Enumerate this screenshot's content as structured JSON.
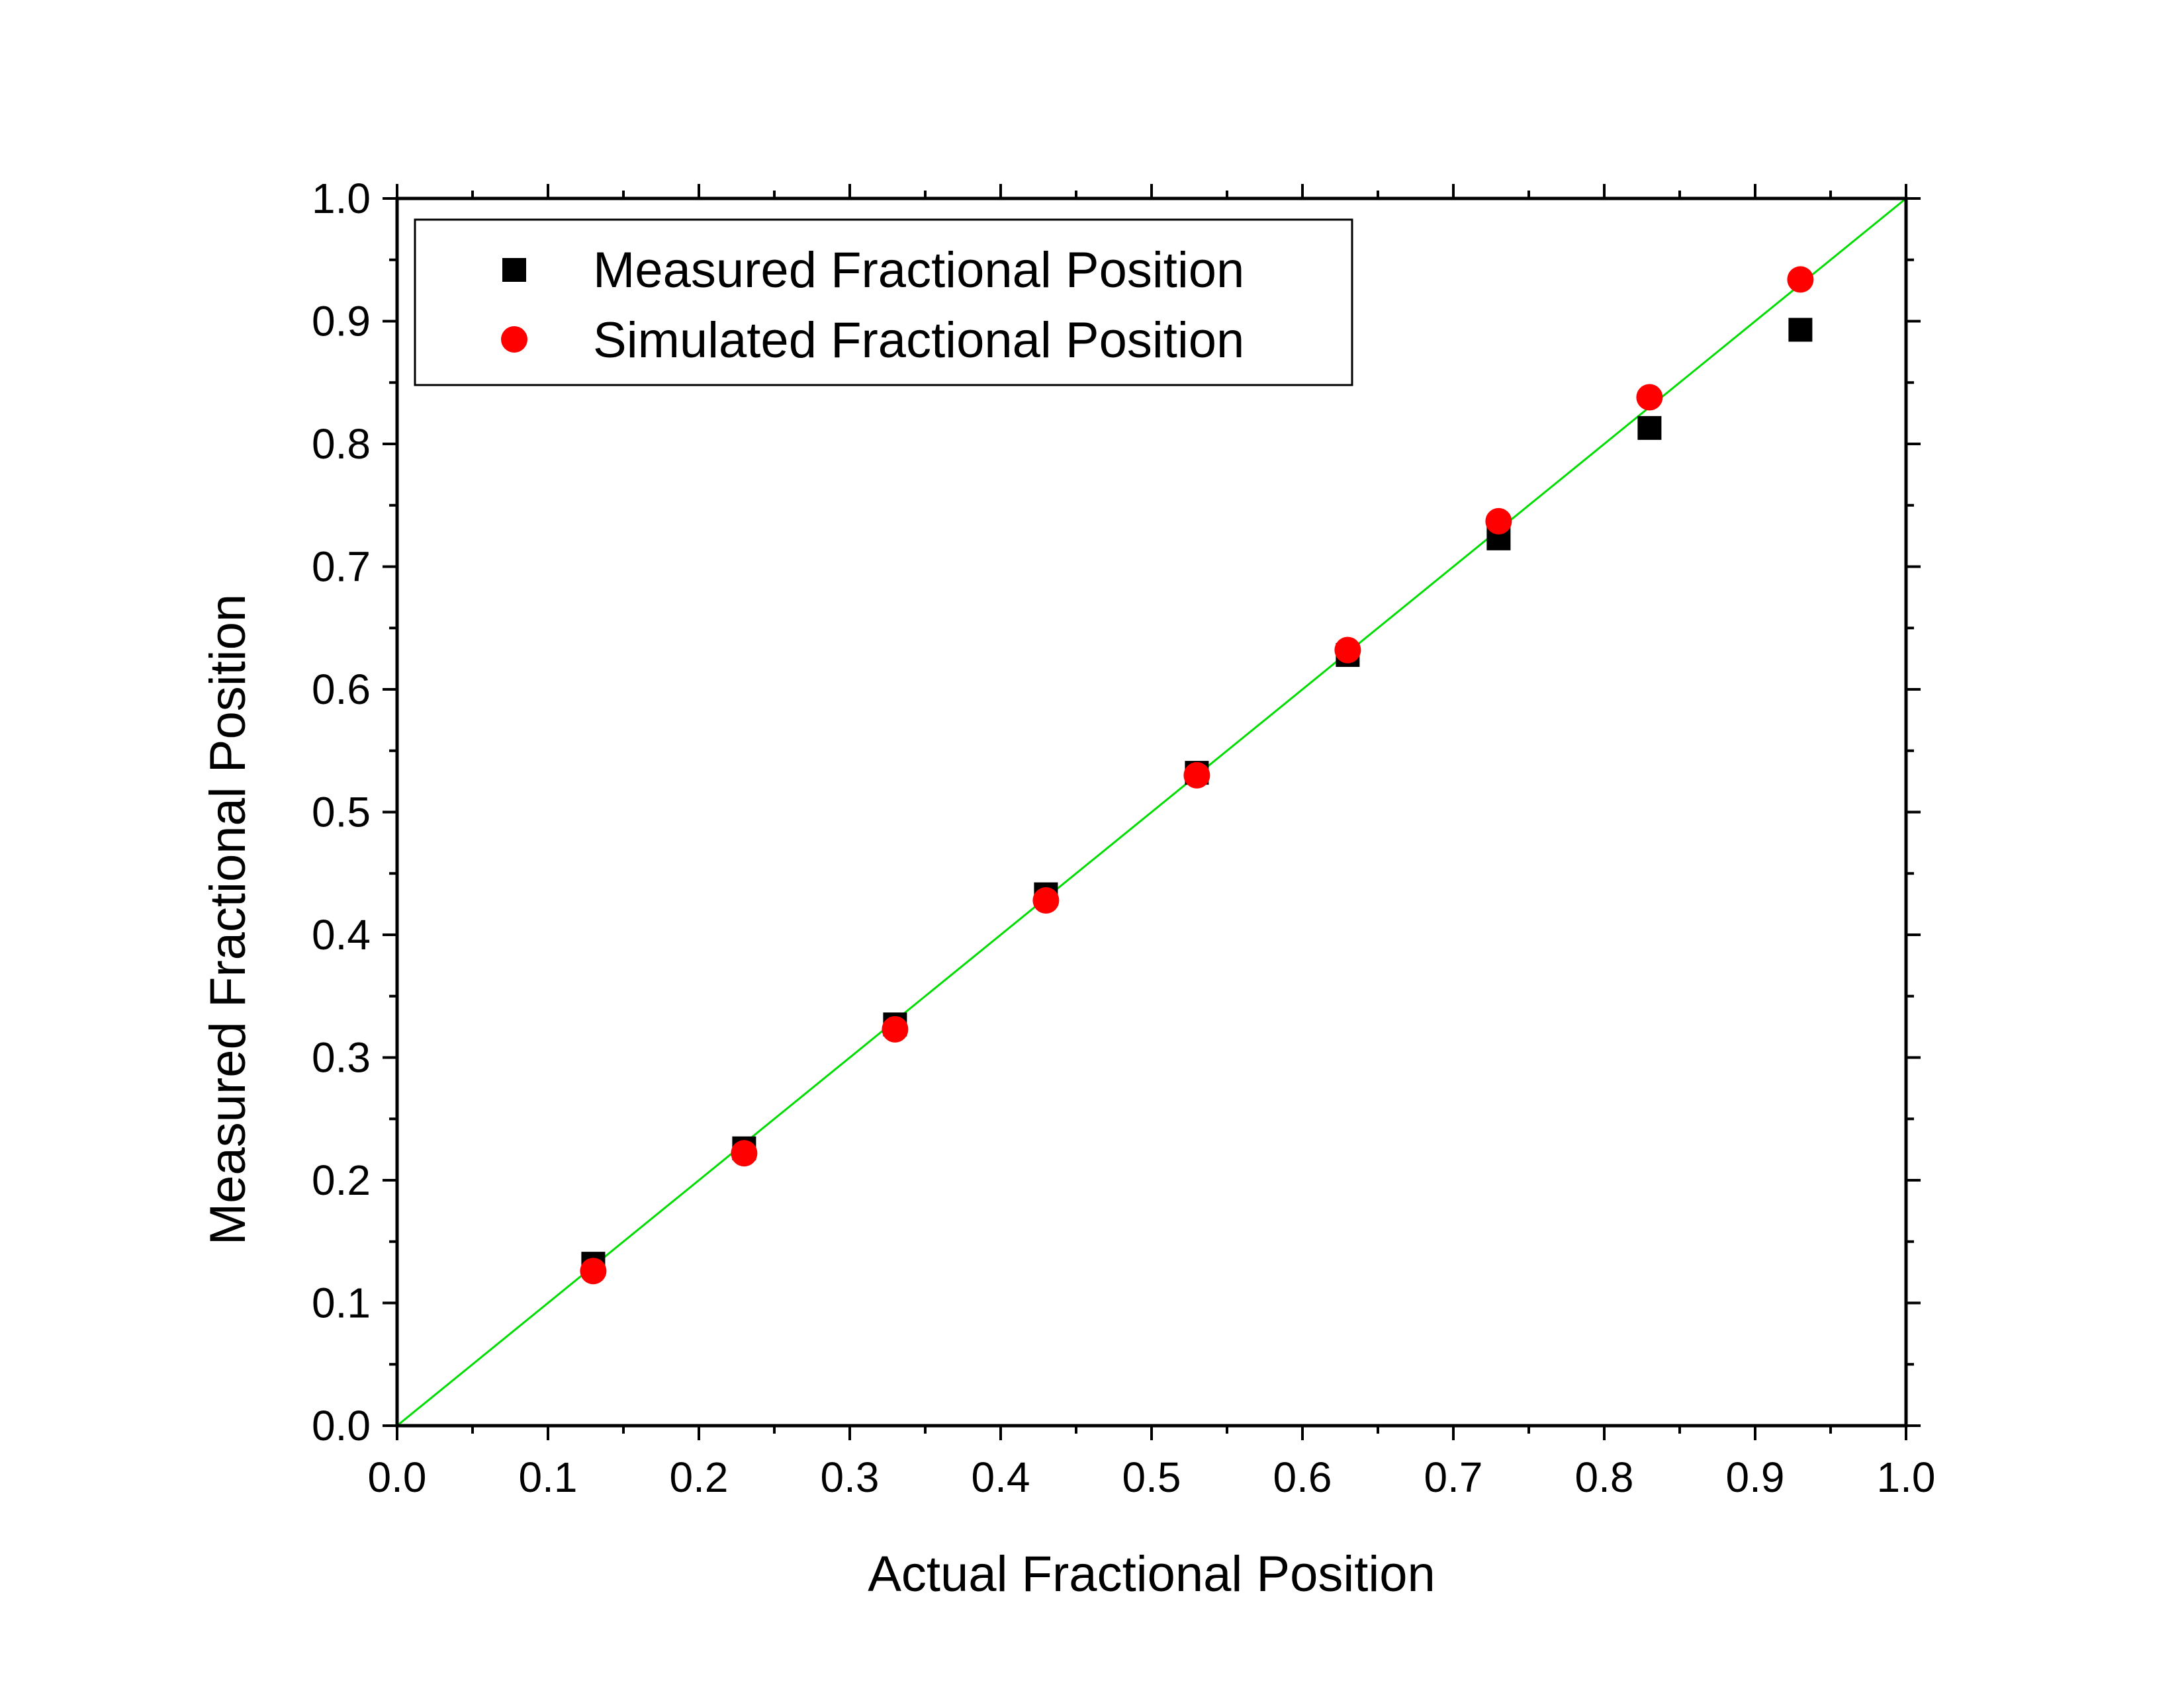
{
  "chart_data": {
    "type": "scatter",
    "title": "",
    "xlabel": "Actual Fractional Position",
    "ylabel": "Measured Fractional Position",
    "xlim": [
      0.0,
      1.0
    ],
    "ylim": [
      0.0,
      1.0
    ],
    "xticks": [
      "0.0",
      "0.1",
      "0.2",
      "0.3",
      "0.4",
      "0.5",
      "0.6",
      "0.7",
      "0.8",
      "0.9",
      "1.0"
    ],
    "yticks": [
      "0.0",
      "0.1",
      "0.2",
      "0.3",
      "0.4",
      "0.5",
      "0.6",
      "0.7",
      "0.8",
      "0.9",
      "1.0"
    ],
    "grid": false,
    "legend": {
      "position": "top-left",
      "entries": [
        "Measured Fractional Position",
        "Simulated Fractional Position"
      ]
    },
    "series": [
      {
        "name": "Measured Fractional Position",
        "marker": "square",
        "color": "#000000",
        "x": [
          0.13,
          0.23,
          0.33,
          0.43,
          0.53,
          0.63,
          0.73,
          0.83,
          0.93
        ],
        "y": [
          0.132,
          0.226,
          0.327,
          0.433,
          0.532,
          0.628,
          0.723,
          0.813,
          0.893
        ]
      },
      {
        "name": "Simulated Fractional Position",
        "marker": "circle",
        "color": "#ff0000",
        "x": [
          0.13,
          0.23,
          0.33,
          0.43,
          0.53,
          0.63,
          0.73,
          0.83,
          0.93
        ],
        "y": [
          0.126,
          0.222,
          0.323,
          0.428,
          0.53,
          0.632,
          0.737,
          0.838,
          0.934
        ]
      }
    ],
    "reference_line": {
      "name": "y = x",
      "color": "#00dd00",
      "x": [
        0.0,
        1.0
      ],
      "y": [
        0.0,
        1.0
      ]
    }
  }
}
